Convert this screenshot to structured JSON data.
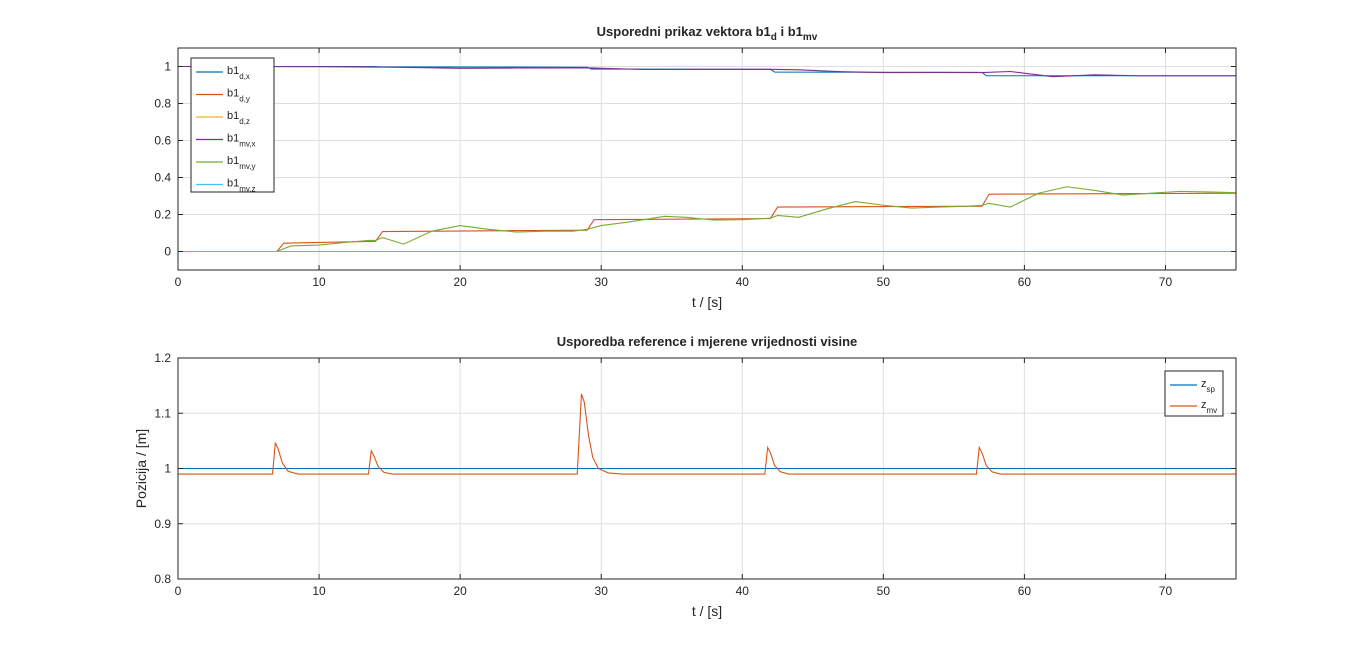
{
  "chart_data": [
    {
      "type": "line",
      "title": {
        "main": "Usporedni prikaz vektora b1",
        "sub1": "d",
        "mid": " i b1",
        "sub2": "mv"
      },
      "xlabel": "t / [s]",
      "ylabel": "",
      "xlim": [
        0,
        75
      ],
      "ylim": [
        -0.1,
        1.1
      ],
      "xticks": [
        0,
        10,
        20,
        30,
        40,
        50,
        60,
        70
      ],
      "yticks": [
        0,
        0.2,
        0.4,
        0.6,
        0.8,
        1
      ],
      "ytick_labels": [
        "0",
        "0.2",
        "0.4",
        "0.6",
        "0.8",
        "1"
      ],
      "grid": true,
      "legend_position": "top-left",
      "series": [
        {
          "name": "b1",
          "sub": "d,x",
          "color": "#0072BD",
          "points": [
            [
              0,
              1
            ],
            [
              14,
              1
            ],
            [
              14.3,
              0.998
            ],
            [
              29,
              0.996
            ],
            [
              29.3,
              0.986
            ],
            [
              42,
              0.985
            ],
            [
              42.3,
              0.97
            ],
            [
              57,
              0.968
            ],
            [
              57.3,
              0.95
            ],
            [
              75,
              0.95
            ]
          ]
        },
        {
          "name": "b1",
          "sub": "d,y",
          "color": "#D95319",
          "points": [
            [
              7,
              0
            ],
            [
              7.5,
              0.045
            ],
            [
              14,
              0.055
            ],
            [
              14.5,
              0.108
            ],
            [
              29,
              0.115
            ],
            [
              29.5,
              0.172
            ],
            [
              42,
              0.178
            ],
            [
              42.5,
              0.24
            ],
            [
              57,
              0.245
            ],
            [
              57.5,
              0.31
            ],
            [
              75,
              0.315
            ]
          ]
        },
        {
          "name": "b1",
          "sub": "d,z",
          "color": "#EDB120",
          "points": [
            [
              0,
              0
            ],
            [
              75,
              0
            ]
          ]
        },
        {
          "name": "b1",
          "sub": "mv,x",
          "color": "#7E2F8E",
          "points": [
            [
              0,
              1
            ],
            [
              10,
              0.999
            ],
            [
              14,
              0.997
            ],
            [
              17,
              0.994
            ],
            [
              20,
              0.99
            ],
            [
              24,
              0.992
            ],
            [
              29,
              0.993
            ],
            [
              33,
              0.984
            ],
            [
              37,
              0.985
            ],
            [
              42,
              0.985
            ],
            [
              44,
              0.982
            ],
            [
              47,
              0.972
            ],
            [
              50,
              0.967
            ],
            [
              54,
              0.968
            ],
            [
              57,
              0.967
            ],
            [
              59,
              0.973
            ],
            [
              62,
              0.945
            ],
            [
              65,
              0.955
            ],
            [
              68,
              0.95
            ],
            [
              75,
              0.95
            ]
          ]
        },
        {
          "name": "b1",
          "sub": "mv,y",
          "color": "#77AC30",
          "points": [
            [
              7,
              0
            ],
            [
              8,
              0.03
            ],
            [
              10,
              0.035
            ],
            [
              12,
              0.05
            ],
            [
              13.5,
              0.06
            ],
            [
              14,
              0.06
            ],
            [
              14.5,
              0.075
            ],
            [
              16,
              0.04
            ],
            [
              18,
              0.11
            ],
            [
              20,
              0.14
            ],
            [
              22,
              0.12
            ],
            [
              24,
              0.105
            ],
            [
              26,
              0.11
            ],
            [
              28,
              0.11
            ],
            [
              29,
              0.12
            ],
            [
              30,
              0.14
            ],
            [
              32,
              0.16
            ],
            [
              34.5,
              0.19
            ],
            [
              36,
              0.185
            ],
            [
              38,
              0.17
            ],
            [
              40,
              0.172
            ],
            [
              42,
              0.18
            ],
            [
              42.5,
              0.195
            ],
            [
              44,
              0.185
            ],
            [
              46,
              0.23
            ],
            [
              48,
              0.27
            ],
            [
              50,
              0.25
            ],
            [
              52,
              0.235
            ],
            [
              54,
              0.24
            ],
            [
              56,
              0.245
            ],
            [
              57,
              0.25
            ],
            [
              57.5,
              0.26
            ],
            [
              59,
              0.24
            ],
            [
              61,
              0.315
            ],
            [
              63,
              0.35
            ],
            [
              65,
              0.33
            ],
            [
              67,
              0.305
            ],
            [
              69,
              0.315
            ],
            [
              71,
              0.325
            ],
            [
              73,
              0.322
            ],
            [
              75,
              0.318
            ]
          ]
        },
        {
          "name": "b1",
          "sub": "mv,z",
          "color": "#4DBEEE",
          "points": [
            [
              0,
              0
            ],
            [
              75,
              0
            ]
          ]
        }
      ]
    },
    {
      "type": "line",
      "title": {
        "main": "Usporedba reference i mjerene vrijednosti visine"
      },
      "xlabel": "t / [s]",
      "ylabel": "Pozicija / [m]",
      "xlim": [
        0,
        75
      ],
      "ylim": [
        0.8,
        1.2
      ],
      "xticks": [
        0,
        10,
        20,
        30,
        40,
        50,
        60,
        70
      ],
      "yticks": [
        0.8,
        0.9,
        1,
        1.1,
        1.2
      ],
      "ytick_labels": [
        "0.8",
        "0.9",
        "1",
        "1.1",
        "1.2"
      ],
      "grid": true,
      "legend_position": "top-right",
      "series": [
        {
          "name": "z",
          "sub": "sp",
          "color": "#0072BD",
          "points": [
            [
              0,
              1.0
            ],
            [
              75,
              1.0
            ]
          ]
        },
        {
          "name": "z",
          "sub": "mv",
          "color": "#D95319",
          "points": [
            [
              0,
              0.99
            ],
            [
              6.7,
              0.99
            ],
            [
              6.9,
              1.047
            ],
            [
              7.1,
              1.035
            ],
            [
              7.4,
              1.01
            ],
            [
              7.8,
              0.995
            ],
            [
              8.5,
              0.99
            ],
            [
              13.5,
              0.99
            ],
            [
              13.7,
              1.032
            ],
            [
              13.9,
              1.022
            ],
            [
              14.2,
              1.003
            ],
            [
              14.6,
              0.993
            ],
            [
              15.2,
              0.99
            ],
            [
              28.3,
              0.99
            ],
            [
              28.6,
              1.135
            ],
            [
              28.8,
              1.12
            ],
            [
              29.1,
              1.06
            ],
            [
              29.4,
              1.02
            ],
            [
              29.8,
              1.0
            ],
            [
              30.5,
              0.992
            ],
            [
              31.5,
              0.99
            ],
            [
              41.6,
              0.99
            ],
            [
              41.8,
              1.038
            ],
            [
              42,
              1.028
            ],
            [
              42.3,
              1.005
            ],
            [
              42.7,
              0.994
            ],
            [
              43.3,
              0.99
            ],
            [
              56.6,
              0.99
            ],
            [
              56.8,
              1.038
            ],
            [
              57,
              1.028
            ],
            [
              57.3,
              1.005
            ],
            [
              57.7,
              0.994
            ],
            [
              58.3,
              0.99
            ],
            [
              75,
              0.99
            ]
          ]
        }
      ]
    }
  ]
}
